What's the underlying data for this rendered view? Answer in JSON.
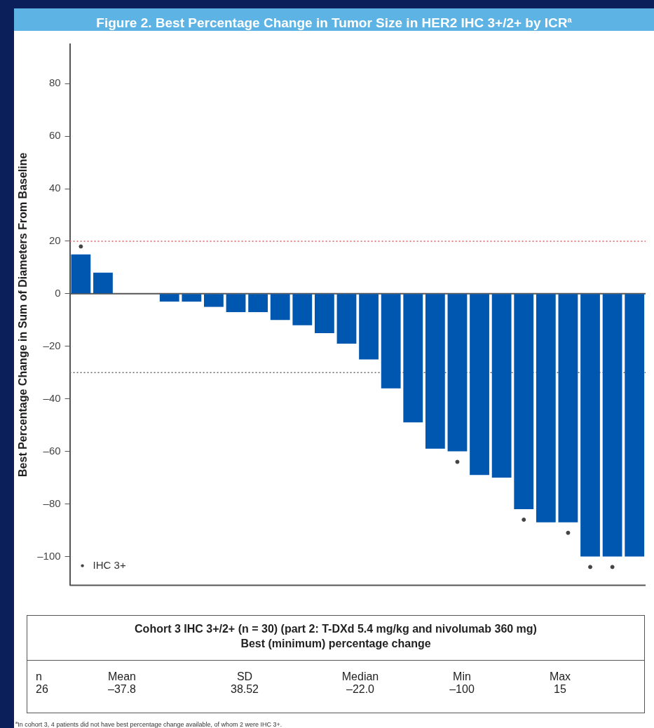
{
  "chart_data": {
    "type": "bar",
    "title": "Figure 2. Best Percentage Change in Tumor Size in HER2 IHC 3+/2+ by ICR$^{a}$",
    "ylabel": "Best Percentage Change in Sum of Diameters From Baseline",
    "categories": [
      null,
      null,
      null,
      null,
      null,
      null,
      null,
      null,
      null,
      null,
      null,
      null,
      null,
      null,
      null,
      null,
      null,
      null,
      null,
      null,
      null,
      null,
      null,
      null,
      null,
      null
    ],
    "series": [
      {
        "color": "#0057b0",
        "values": [
          15,
          8,
          0,
          0,
          -3,
          -3,
          -5,
          -7,
          -7,
          -10,
          -12,
          -15,
          -19,
          -25,
          -36,
          -49,
          -59,
          -60,
          -69,
          -70,
          -82,
          -87,
          -87,
          -100,
          -100,
          -100
        ]
      },
      {
        "type": "scatter",
        "name": "IHC 3+",
        "color": "#444444",
        "marker": "circle",
        "values": [
          18,
          null,
          null,
          null,
          null,
          null,
          null,
          null,
          null,
          null,
          null,
          null,
          null,
          null,
          null,
          null,
          null,
          -64,
          null,
          null,
          -86,
          null,
          -91,
          -104,
          -104,
          null
        ]
      }
    ],
    "ylim": [
      -111,
      95
    ],
    "yticks": [
      {
        "value": -100,
        "label": "–100"
      },
      {
        "value": -80,
        "label": "–80"
      },
      {
        "value": -60,
        "label": "–60"
      },
      {
        "value": -40,
        "label": "–40"
      },
      {
        "value": -20,
        "label": "–20"
      },
      0,
      20,
      40,
      60,
      80
    ],
    "grid": false,
    "legend": "bottom left",
    "ref_lines": [
      {
        "axis": "y",
        "value": 20,
        "color": "#e05a5a",
        "line_style": "dotted"
      },
      {
        "axis": "y",
        "value": -30,
        "color": "#666666",
        "line_style": "dotted"
      }
    ],
    "annotations": [
      "Cohort 3 IHC 3+/2+ (n = 30) (part 2: T-DXd 5.4 mg/kg and nivolumab 360 mg)",
      "Best (minimum) percentage change",
      "n",
      "26",
      "Mean",
      "–37.8",
      "SD",
      "38.52",
      "Median",
      "–22.0",
      "Min",
      "–100",
      "Max",
      "15",
      "$^{a}$In cohort 3, 4 patients did not have best percentage change available, of whom 2 were IHC 3+."
    ]
  }
}
